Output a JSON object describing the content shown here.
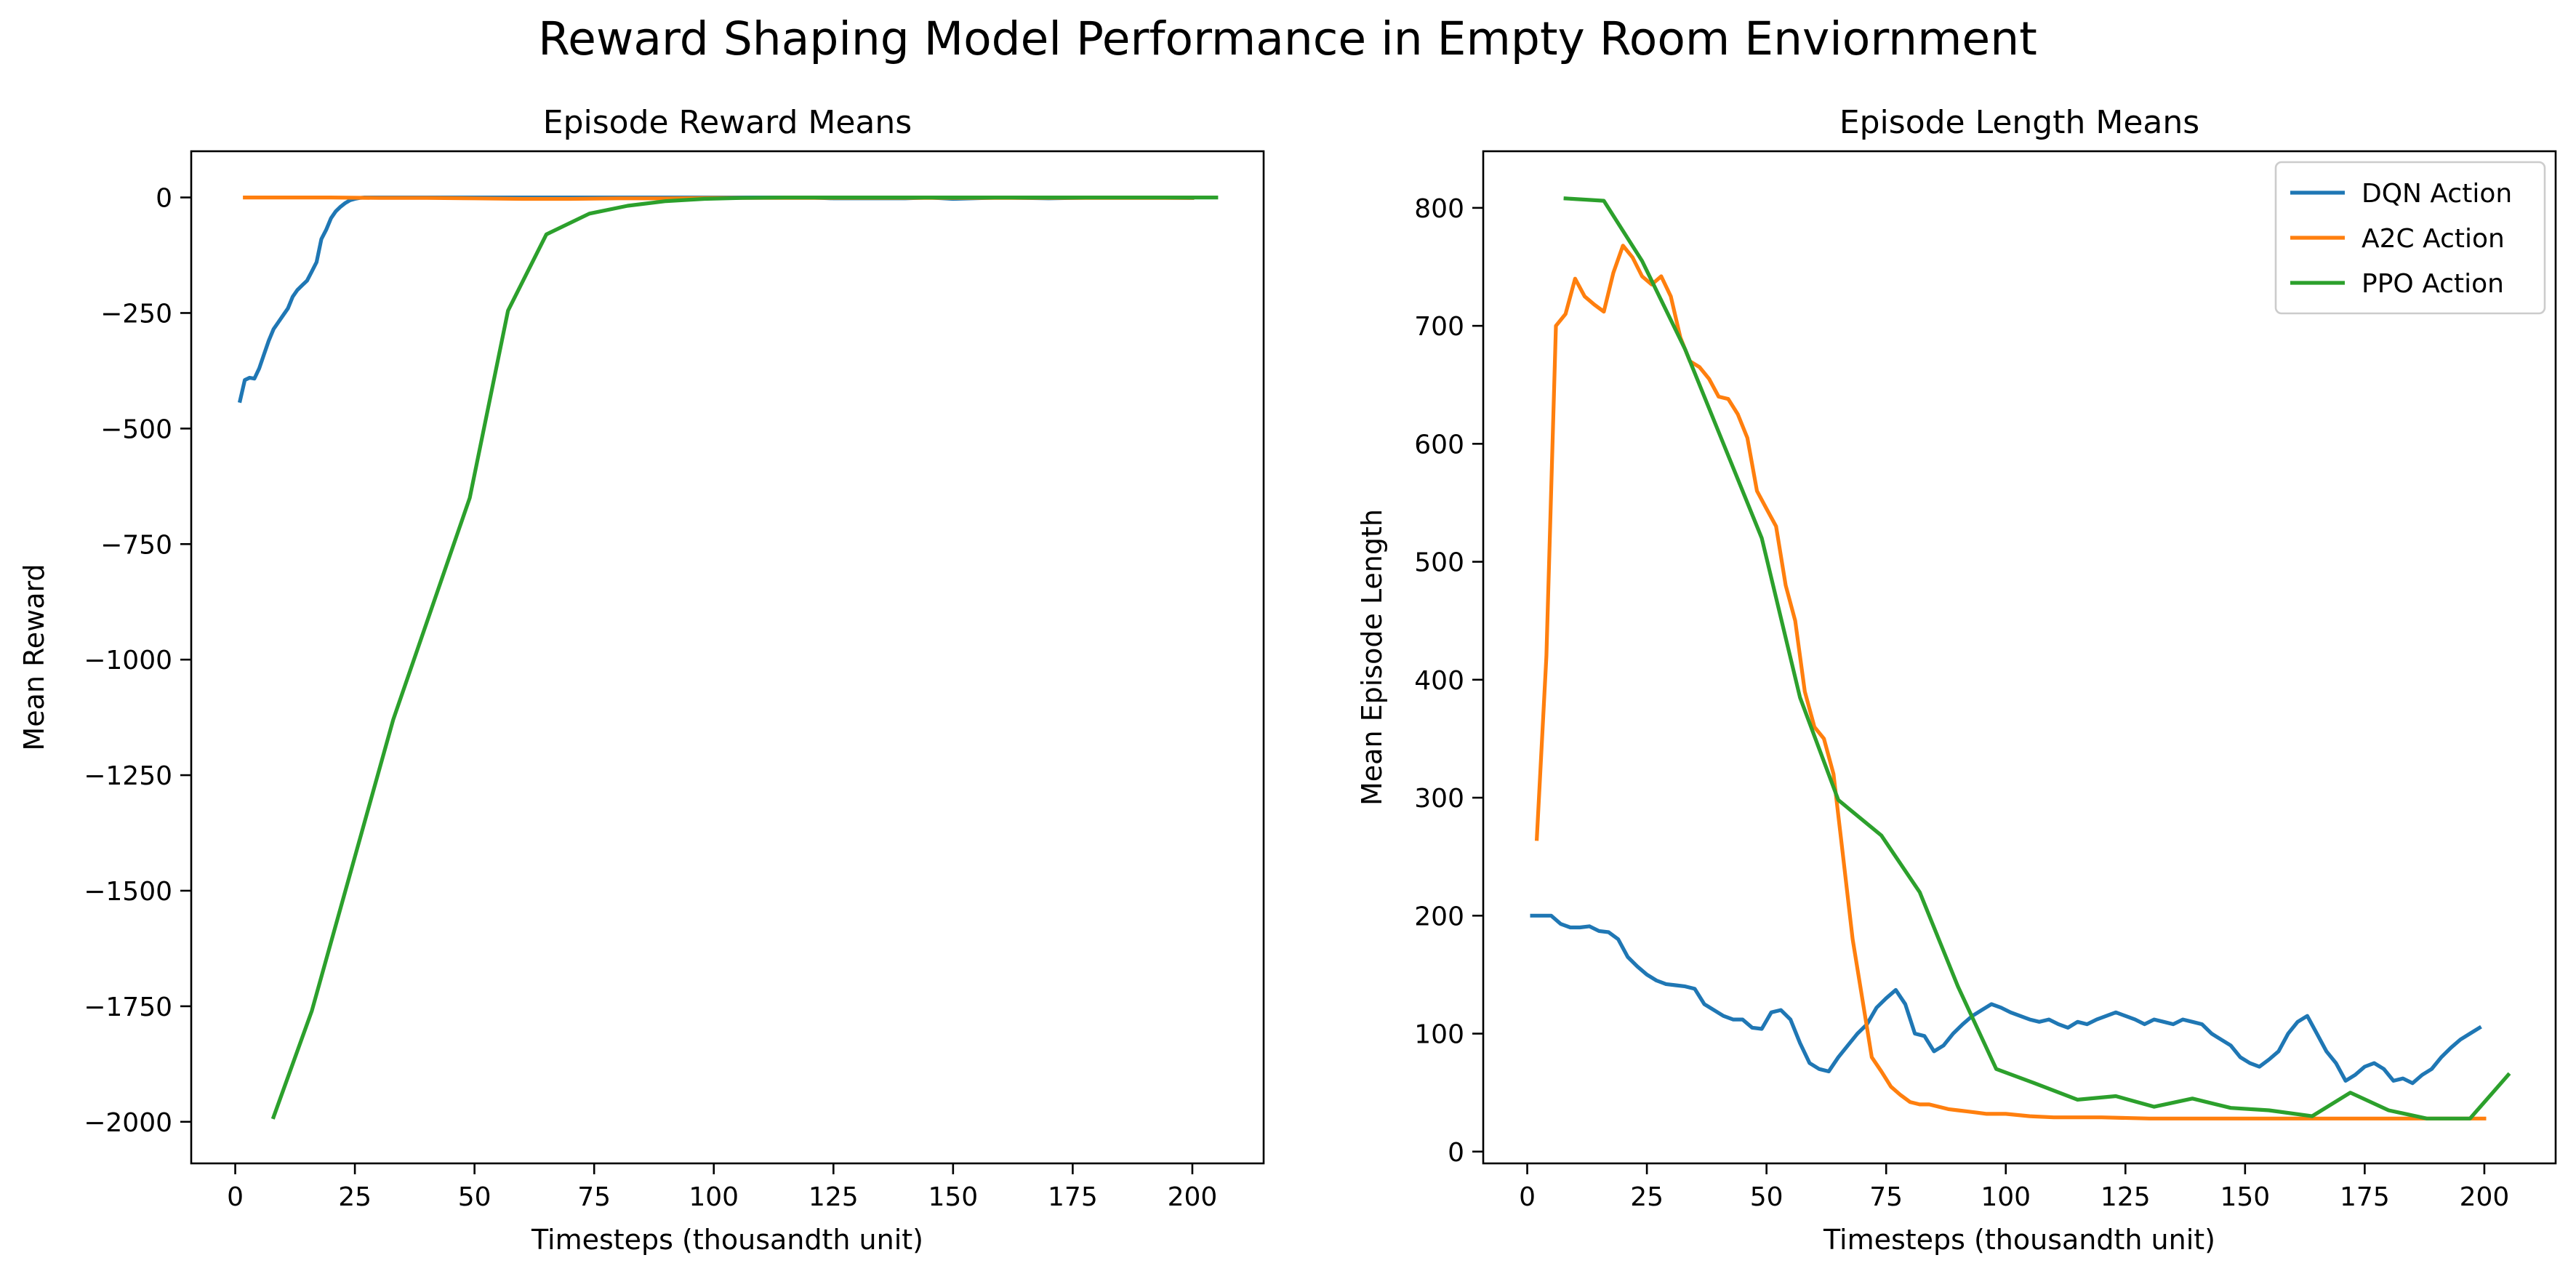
{
  "figure": {
    "suptitle": "Reward Shaping Model Performance in Empty Room Enviornment"
  },
  "chart_data": [
    {
      "type": "line",
      "title": "Episode Reward Means",
      "xlabel": "Timesteps (thousandth unit)",
      "ylabel": "Mean Reward",
      "xlim": [
        -9.2,
        214.9
      ],
      "ylim": [
        -2090,
        100
      ],
      "xticks": [
        0,
        25,
        50,
        75,
        100,
        125,
        150,
        175,
        200
      ],
      "xtick_labels": [
        "0",
        "25",
        "50",
        "75",
        "100",
        "125",
        "150",
        "175",
        "200"
      ],
      "yticks": [
        0,
        -250,
        -500,
        -750,
        -1000,
        -1250,
        -1500,
        -1750,
        -2000
      ],
      "ytick_labels": [
        "0",
        "−250",
        "−500",
        "−750",
        "−1000",
        "−1250",
        "−1500",
        "−1750",
        "−2000"
      ],
      "grid": false,
      "legend": null,
      "series": [
        {
          "color": "#1f77b4",
          "x": [
            1,
            2,
            3,
            4,
            5,
            6,
            7,
            8,
            9,
            10,
            11,
            12,
            13,
            14,
            15,
            16,
            17,
            18,
            19,
            20,
            21,
            22,
            23,
            24,
            25,
            26,
            27,
            28,
            29,
            30,
            32,
            34,
            36,
            40,
            50,
            60,
            70,
            80,
            90,
            100,
            110,
            120,
            125,
            130,
            140,
            145,
            150,
            160,
            170,
            180,
            190,
            200
          ],
          "y": [
            -440,
            -395,
            -390,
            -392,
            -370,
            -340,
            -310,
            -285,
            -270,
            -255,
            -240,
            -215,
            -200,
            -190,
            -180,
            -160,
            -140,
            -90,
            -70,
            -45,
            -30,
            -20,
            -12,
            -6,
            -3,
            -1,
            0,
            0,
            0,
            0,
            0,
            0,
            0,
            0,
            0,
            0,
            0,
            0,
            0,
            0,
            0,
            0,
            -2,
            -2,
            -2,
            0,
            -3,
            0,
            -2,
            0,
            0,
            -1
          ]
        },
        {
          "color": "#ff7f0e",
          "x": [
            2,
            10,
            20,
            30,
            40,
            50,
            60,
            70,
            80,
            90,
            100,
            110,
            120,
            130,
            140,
            150,
            160,
            170,
            180,
            190,
            200
          ],
          "y": [
            0,
            0,
            0,
            -1,
            -1,
            -2,
            -3,
            -3,
            -2,
            -2,
            -1,
            -1,
            -1,
            -1,
            -1,
            -1,
            -1,
            -1,
            -1,
            -1,
            -1
          ]
        },
        {
          "color": "#2ca02c",
          "x": [
            8,
            16,
            33,
            49,
            57,
            65,
            74,
            82,
            90,
            98,
            106,
            115,
            123,
            131,
            139,
            147,
            155,
            164,
            172,
            180,
            188,
            197,
            205
          ],
          "y": [
            -1990,
            -1760,
            -1130,
            -650,
            -245,
            -80,
            -35,
            -18,
            -8,
            -3,
            -1,
            0,
            0,
            0,
            0,
            0,
            0,
            0,
            0,
            0,
            0,
            0,
            0
          ]
        }
      ]
    },
    {
      "type": "line",
      "title": "Episode Length Means",
      "xlabel": "Timesteps (thousandth unit)",
      "ylabel": "Mean Episode Length",
      "xlim": [
        -9.2,
        214.9
      ],
      "ylim": [
        -10,
        848
      ],
      "xticks": [
        0,
        25,
        50,
        75,
        100,
        125,
        150,
        175,
        200
      ],
      "xtick_labels": [
        "0",
        "25",
        "50",
        "75",
        "100",
        "125",
        "150",
        "175",
        "200"
      ],
      "yticks": [
        0,
        100,
        200,
        300,
        400,
        500,
        600,
        700,
        800
      ],
      "ytick_labels": [
        "0",
        "100",
        "200",
        "300",
        "400",
        "500",
        "600",
        "700",
        "800"
      ],
      "grid": false,
      "legend": "top-right",
      "series": [
        {
          "name": "DQN Action",
          "color": "#1f77b4",
          "x": [
            1,
            3,
            5,
            7,
            9,
            11,
            13,
            15,
            17,
            19,
            21,
            23,
            25,
            27,
            29,
            31,
            33,
            35,
            37,
            39,
            41,
            43,
            45,
            47,
            49,
            51,
            53,
            55,
            57,
            59,
            61,
            63,
            65,
            67,
            69,
            71,
            72,
            73,
            75,
            77,
            79,
            81,
            83,
            85,
            87,
            89,
            91,
            93,
            95,
            97,
            99,
            101,
            103,
            105,
            107,
            109,
            111,
            113,
            115,
            117,
            119,
            121,
            123,
            125,
            127,
            129,
            131,
            133,
            135,
            137,
            139,
            141,
            143,
            145,
            147,
            149,
            151,
            153,
            155,
            157,
            159,
            161,
            163,
            165,
            167,
            169,
            171,
            173,
            175,
            177,
            179,
            181,
            183,
            185,
            187,
            189,
            191,
            193,
            195,
            197,
            199
          ],
          "y": [
            200,
            200,
            200,
            193,
            190,
            190,
            191,
            187,
            186,
            180,
            165,
            157,
            150,
            145,
            142,
            141,
            140,
            138,
            125,
            120,
            115,
            112,
            112,
            105,
            104,
            118,
            120,
            112,
            92,
            75,
            70,
            68,
            80,
            90,
            100,
            108,
            115,
            122,
            130,
            137,
            125,
            100,
            98,
            85,
            90,
            100,
            108,
            115,
            120,
            125,
            122,
            118,
            115,
            112,
            110,
            112,
            108,
            105,
            110,
            108,
            112,
            115,
            118,
            115,
            112,
            108,
            112,
            110,
            108,
            112,
            110,
            108,
            100,
            95,
            90,
            80,
            75,
            72,
            78,
            85,
            100,
            110,
            115,
            100,
            85,
            75,
            60,
            65,
            72,
            75,
            70,
            60,
            62,
            58,
            65,
            70,
            80,
            88,
            95,
            100,
            105
          ]
        },
        {
          "name": "A2C Action",
          "color": "#ff7f0e",
          "x": [
            2,
            4,
            6,
            8,
            10,
            12,
            14,
            16,
            18,
            20,
            22,
            24,
            26,
            28,
            30,
            32,
            34,
            36,
            38,
            40,
            42,
            44,
            46,
            48,
            50,
            52,
            54,
            56,
            58,
            60,
            62,
            64,
            66,
            68,
            70,
            72,
            74,
            76,
            78,
            80,
            82,
            84,
            86,
            88,
            90,
            92,
            94,
            96,
            98,
            100,
            105,
            110,
            120,
            130,
            140,
            150,
            160,
            170,
            180,
            190,
            200
          ],
          "y": [
            265,
            420,
            700,
            710,
            740,
            725,
            718,
            712,
            745,
            768,
            758,
            742,
            735,
            742,
            725,
            690,
            670,
            665,
            655,
            640,
            638,
            625,
            605,
            560,
            545,
            530,
            480,
            450,
            390,
            360,
            350,
            320,
            250,
            180,
            130,
            80,
            68,
            55,
            48,
            42,
            40,
            40,
            38,
            36,
            35,
            34,
            33,
            32,
            32,
            32,
            30,
            29,
            29,
            28,
            28,
            28,
            28,
            28,
            28,
            28,
            28
          ]
        },
        {
          "name": "PPO Action",
          "color": "#2ca02c",
          "x": [
            8,
            16,
            24,
            33,
            41,
            49,
            57,
            65,
            74,
            82,
            90,
            98,
            106,
            115,
            123,
            131,
            139,
            147,
            155,
            164,
            172,
            180,
            188,
            197,
            205
          ],
          "y": [
            808,
            806,
            755,
            680,
            600,
            520,
            385,
            298,
            268,
            220,
            140,
            70,
            58,
            44,
            47,
            38,
            45,
            37,
            35,
            30,
            50,
            35,
            28,
            28,
            65
          ]
        }
      ]
    }
  ]
}
